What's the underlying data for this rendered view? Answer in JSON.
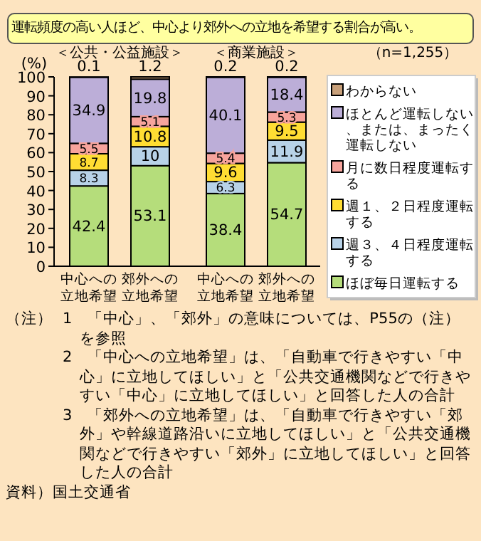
{
  "chart_data": {
    "type": "bar",
    "stacked": true,
    "title": "運転頻度の高い人ほど、中心より郊外への立地を希望する割合が高い。",
    "ylabel": "(%)",
    "categories": [
      "中心への立地希望",
      "郊外への立地希望",
      "中心への立地希望",
      "郊外への立地希望"
    ],
    "series": [
      {
        "name": "ほぼ毎日運転する",
        "color": "#b5dd7b",
        "values": [
          42.4,
          53.1,
          38.4,
          54.7
        ]
      },
      {
        "name": "週３、４日程度運転する",
        "color": "#b8d2e8",
        "values": [
          8.3,
          10.0,
          6.3,
          11.9
        ]
      },
      {
        "name": "週１、２日程度運転する",
        "color": "#ffdd33",
        "values": [
          8.7,
          10.8,
          9.6,
          9.5
        ]
      },
      {
        "name": "月に数日程度運転する",
        "color": "#f7a49c",
        "values": [
          5.5,
          5.1,
          5.4,
          5.3
        ]
      },
      {
        "name": "ほとんど運転しない、または、まったく運転しない",
        "color": "#bcaed8",
        "values": [
          34.9,
          19.8,
          40.1,
          18.4
        ]
      },
      {
        "name": "わからない",
        "color": "#c8a07a",
        "values": [
          0.1,
          1.2,
          0.2,
          0.2
        ]
      }
    ],
    "ylim": [
      0,
      100
    ],
    "yticks": [
      0,
      10,
      20,
      30,
      40,
      50,
      60,
      70,
      80,
      90,
      100
    ],
    "data_labels": true,
    "legend": "right",
    "grid": false,
    "annotations": [
      "＜公共・公益施設＞",
      "＜商業施設＞",
      "（n=1,255）",
      "（注）",
      "1　「中心」、「郊外」の意味については、P55の（注）を参照",
      "2　「中心への立地希望」は、「自動車で行きやすい「中心」に立地してほしい」と「公共交通機関などで行きやすい「中心」に立地してほしい」と回答した人の合計",
      "3　「郊外への立地希望」は、「自動車で行きやすい「郊外」や幹線道路沿いに立地してほしい」と「公共交通機関などで行きやすい「郊外」に立地してほしい」と回答した人の合計",
      "資料）国土交通省"
    ]
  }
}
